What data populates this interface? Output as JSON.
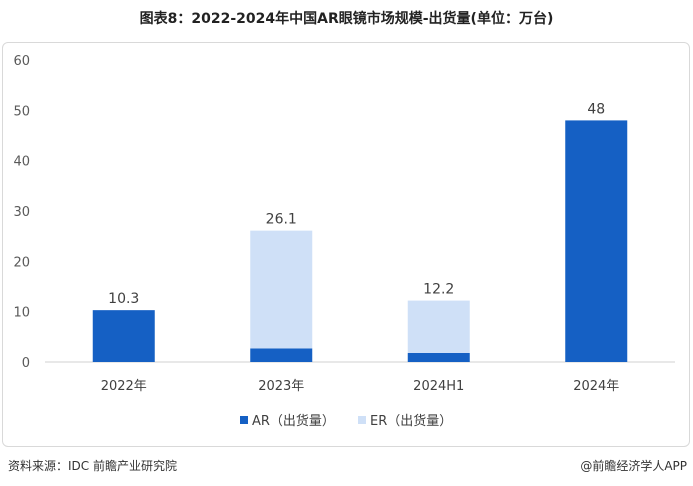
{
  "title": "图表8：2022-2024年中国AR眼镜市场规模-出货量(单位：万台)",
  "source": "资料来源：IDC 前瞻产业研究院",
  "credit": "@前瞻经济学人APP",
  "colors": {
    "AR": "#1560c4",
    "ER": "#cfe0f7"
  },
  "chart_data": {
    "type": "bar",
    "stacked": true,
    "title": "图表8：2022-2024年中国AR眼镜市场规模-出货量(单位：万台)",
    "categories": [
      "2022年",
      "2023年",
      "2024H1",
      "2024年"
    ],
    "series": [
      {
        "name": "AR（出货量）",
        "values": [
          10.3,
          2.7,
          1.8,
          48
        ]
      },
      {
        "name": "ER（出货量）",
        "values": [
          0,
          23.4,
          10.4,
          0
        ]
      }
    ],
    "totals": [
      10.3,
      26.1,
      12.2,
      48
    ],
    "total_labels": [
      "10.3",
      "26.1",
      "12.2",
      "48"
    ],
    "ylim": [
      0,
      60
    ],
    "yticks": [
      0,
      10,
      20,
      30,
      40,
      50,
      60
    ],
    "legend": "bottom",
    "grid": false
  }
}
